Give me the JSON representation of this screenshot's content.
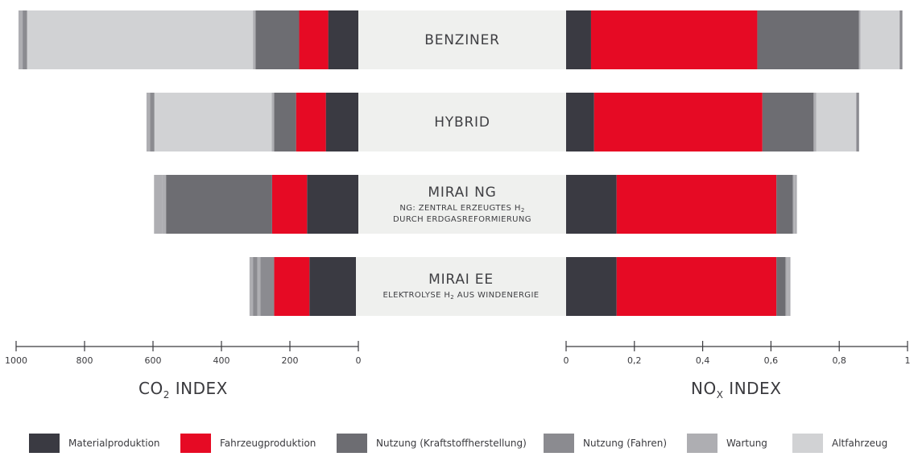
{
  "chart_data": {
    "type": "bar",
    "orientation": "horizontal-butterfly",
    "categories": [
      {
        "label": "BENZINER",
        "sub_before": "",
        "sub_sub": "",
        "sub_after": ""
      },
      {
        "label": "HYBRID",
        "sub_before": "",
        "sub_sub": "",
        "sub_after": ""
      },
      {
        "label": "MIRAI NG",
        "sub_before": "NG: ZENTRAL ERZEUGTES H",
        "sub_sub": "2",
        "sub_after": "",
        "sub_line2": "DURCH ERDGASREFORMIERUNG"
      },
      {
        "label": "MIRAI EE",
        "sub_before": "ELEKTROLYSE H",
        "sub_sub": "2",
        "sub_after": " AUS WINDENERGIE",
        "sub_line2": ""
      }
    ],
    "series": [
      {
        "name": "Materialproduktion",
        "color": "#3a3a42",
        "co2": [
          88,
          95,
          150,
          143
        ],
        "nox": [
          0.073,
          0.082,
          0.148,
          0.148
        ]
      },
      {
        "name": "Fahrzeugproduktion",
        "color": "#e60a24",
        "co2": [
          85,
          87,
          102,
          103
        ],
        "nox": [
          0.487,
          0.493,
          0.468,
          0.468
        ]
      },
      {
        "name": "Nutzung (Kraftstoffherstellung)",
        "color": "#6d6d72",
        "co2": [
          127,
          64,
          310,
          0
        ],
        "nox": [
          0.298,
          0.15,
          0.048,
          0.027
        ]
      },
      {
        "name": "Nutzung (Fahren)",
        "color": "#8b8b90",
        "co2": [
          0,
          0,
          0,
          40
        ],
        "nox": [
          0,
          0,
          0,
          0
        ]
      },
      {
        "name": "Wartung",
        "color": "#aeaeb2",
        "co2": [
          8,
          7,
          10,
          9
        ],
        "nox": [
          0.004,
          0.008,
          0.004,
          0.006
        ]
      },
      {
        "name": "Altfahrzeug",
        "color": "#d1d2d4",
        "co2": [
          660,
          343,
          0,
          0
        ],
        "nox": [
          0.115,
          0.117,
          0,
          0
        ]
      }
    ],
    "extra_segments": {
      "co2_end_cap": [
        {
          "name": "Nutzung (Fahren)",
          "values": [
            13,
            13,
            0,
            13
          ]
        },
        {
          "name": "Wartung",
          "values": [
            12,
            10,
            25,
            10
          ]
        }
      ],
      "nox_end_cap": [
        {
          "name": "Nutzung (Fahren)",
          "values": [
            0.008,
            0.008,
            0,
            0
          ]
        },
        {
          "name": "Wartung",
          "values": [
            0,
            0,
            0.008,
            0.008
          ]
        }
      ]
    },
    "left_axis": {
      "title_before": "CO",
      "title_sub": "2",
      "title_after": " INDEX",
      "range": [
        1000,
        0
      ],
      "ticks": [
        "1000",
        "800",
        "600",
        "400",
        "200",
        "0"
      ]
    },
    "right_axis": {
      "title_before": "NO",
      "title_sub": "X",
      "title_after": " INDEX",
      "range": [
        0,
        1
      ],
      "ticks": [
        "0",
        "0,2",
        "0,4",
        "0,6",
        "0,8",
        "1"
      ]
    },
    "grid": false,
    "legend_position": "bottom"
  }
}
